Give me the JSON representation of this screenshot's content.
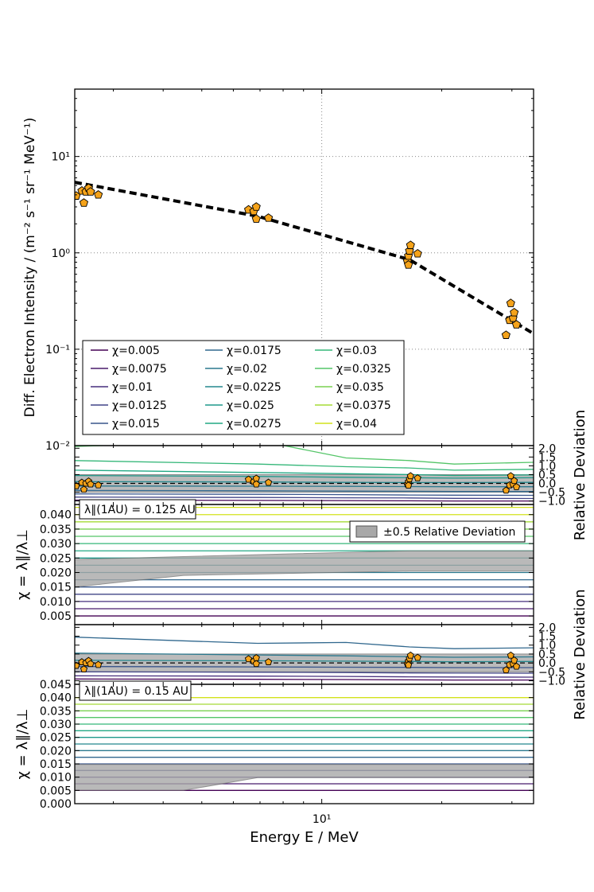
{
  "chart_data": [
    {
      "type": "scatter",
      "panel": "intensity",
      "xscale": "log",
      "yscale": "log",
      "xlim": [
        2.4,
        34
      ],
      "ylim": [
        0.01,
        50
      ],
      "ylabel": "Diff. Electron Intensity / (m⁻² s⁻¹ sr⁻¹ MeV⁻¹)",
      "ytick_labels": [
        "10⁻²",
        "10⁻¹",
        "10⁰",
        "10¹"
      ],
      "ytick_values": [
        0.01,
        0.1,
        1,
        10
      ],
      "grid": true,
      "marker_color": "#f5a31a",
      "points": [
        {
          "x": 2.42,
          "y": 3.9
        },
        {
          "x": 2.5,
          "y": 4.4
        },
        {
          "x": 2.53,
          "y": 3.3
        },
        {
          "x": 2.56,
          "y": 4.3
        },
        {
          "x": 2.6,
          "y": 4.7
        },
        {
          "x": 2.63,
          "y": 4.3
        },
        {
          "x": 2.75,
          "y": 4.0
        },
        {
          "x": 6.55,
          "y": 2.8
        },
        {
          "x": 6.75,
          "y": 2.7
        },
        {
          "x": 6.85,
          "y": 3.0
        },
        {
          "x": 6.85,
          "y": 2.25
        },
        {
          "x": 7.35,
          "y": 2.3
        },
        {
          "x": 16.4,
          "y": 0.82
        },
        {
          "x": 16.5,
          "y": 0.93
        },
        {
          "x": 16.6,
          "y": 1.05
        },
        {
          "x": 16.7,
          "y": 1.2
        },
        {
          "x": 16.5,
          "y": 0.75
        },
        {
          "x": 17.4,
          "y": 0.98
        },
        {
          "x": 29.0,
          "y": 0.14
        },
        {
          "x": 29.6,
          "y": 0.2
        },
        {
          "x": 29.8,
          "y": 0.3
        },
        {
          "x": 30.2,
          "y": 0.21
        },
        {
          "x": 30.4,
          "y": 0.24
        },
        {
          "x": 30.8,
          "y": 0.18
        }
      ],
      "fit_line": {
        "style": "dashed",
        "x": [
          2.4,
          6.9,
          16.6,
          34
        ],
        "y": [
          5.4,
          2.4,
          0.85,
          0.145
        ]
      },
      "legend": {
        "location": "lower-left",
        "entries": [
          {
            "label": "χ=0.005",
            "color": "#440154"
          },
          {
            "label": "χ=0.0075",
            "color": "#481a6c"
          },
          {
            "label": "χ=0.01",
            "color": "#472f7d"
          },
          {
            "label": "χ=0.0125",
            "color": "#414487"
          },
          {
            "label": "χ=0.015",
            "color": "#39568c"
          },
          {
            "label": "χ=0.0175",
            "color": "#31688e"
          },
          {
            "label": "χ=0.02",
            "color": "#2a788e"
          },
          {
            "label": "χ=0.0225",
            "color": "#23888e"
          },
          {
            "label": "χ=0.025",
            "color": "#1f988b"
          },
          {
            "label": "χ=0.0275",
            "color": "#22a884"
          },
          {
            "label": "χ=0.03",
            "color": "#35b779"
          },
          {
            "label": "χ=0.0325",
            "color": "#54c568"
          },
          {
            "label": "χ=0.035",
            "color": "#7ad151"
          },
          {
            "label": "χ=0.0375",
            "color": "#a5db36"
          },
          {
            "label": "χ=0.04",
            "color": "#d2e21b"
          }
        ]
      }
    },
    {
      "type": "line",
      "panel": "relative-deviation-1",
      "xscale": "log",
      "xlim": [
        2.4,
        34
      ],
      "ylim": [
        -1.2,
        2.15
      ],
      "ylabel": "Relative Deviation",
      "ytick_labels": [
        "2.0",
        "1.5",
        "1.0",
        "0.5",
        "0.0",
        "−0.5",
        "−1.0"
      ],
      "ytick_values": [
        2.0,
        1.5,
        1.0,
        0.5,
        0.0,
        -0.5,
        -1.0
      ],
      "band": [
        -0.5,
        0.5
      ],
      "x_nodes": [
        2.4,
        6.9,
        11.5,
        16.6,
        21.5,
        34
      ],
      "series": [
        {
          "color": "#54c568",
          "values": [
            2.1,
            2.45,
            1.45,
            1.3,
            1.1,
            1.2
          ]
        },
        {
          "color": "#35b779",
          "values": [
            1.3,
            1.1,
            0.95,
            0.88,
            0.75,
            0.8
          ]
        },
        {
          "color": "#22a884",
          "values": [
            0.75,
            0.62,
            0.55,
            0.5,
            0.45,
            0.48
          ]
        },
        {
          "color": "#1f988b",
          "values": [
            0.45,
            0.4,
            0.35,
            0.32,
            0.3,
            0.32
          ]
        },
        {
          "color": "#23888e",
          "values": [
            0.1,
            0.08,
            0.06,
            0.05,
            0.05,
            0.06
          ]
        },
        {
          "color": "#2a788e",
          "values": [
            -0.15,
            -0.16,
            -0.17,
            -0.18,
            -0.19,
            -0.19
          ]
        },
        {
          "color": "#31688e",
          "values": [
            -0.4,
            -0.42,
            -0.44,
            -0.45,
            -0.46,
            -0.46
          ]
        },
        {
          "color": "#39568c",
          "values": [
            -0.6,
            -0.62,
            -0.64,
            -0.66,
            -0.67,
            -0.68
          ]
        },
        {
          "color": "#414487",
          "values": [
            -0.78,
            -0.8,
            -0.82,
            -0.83,
            -0.85,
            -0.86
          ]
        },
        {
          "color": "#440154",
          "values": [
            -0.95,
            -0.97,
            -0.98,
            -0.99,
            -1.0,
            -1.0
          ]
        }
      ],
      "points": [
        {
          "x": 2.42,
          "y": -0.15
        },
        {
          "x": 2.5,
          "y": 0.05
        },
        {
          "x": 2.53,
          "y": -0.35
        },
        {
          "x": 2.56,
          "y": 0.0
        },
        {
          "x": 2.6,
          "y": 0.12
        },
        {
          "x": 2.63,
          "y": -0.05
        },
        {
          "x": 2.75,
          "y": -0.1
        },
        {
          "x": 6.55,
          "y": 0.22
        },
        {
          "x": 6.75,
          "y": 0.1
        },
        {
          "x": 6.85,
          "y": 0.28
        },
        {
          "x": 6.85,
          "y": -0.05
        },
        {
          "x": 7.35,
          "y": 0.05
        },
        {
          "x": 16.4,
          "y": -0.05
        },
        {
          "x": 16.5,
          "y": 0.1
        },
        {
          "x": 16.6,
          "y": 0.25
        },
        {
          "x": 16.7,
          "y": 0.42
        },
        {
          "x": 16.5,
          "y": -0.12
        },
        {
          "x": 17.4,
          "y": 0.3
        },
        {
          "x": 29.0,
          "y": -0.4
        },
        {
          "x": 29.6,
          "y": -0.1
        },
        {
          "x": 29.8,
          "y": 0.42
        },
        {
          "x": 30.2,
          "y": -0.05
        },
        {
          "x": 30.4,
          "y": 0.15
        },
        {
          "x": 30.8,
          "y": -0.2
        }
      ]
    },
    {
      "type": "line",
      "panel": "chi-map-1",
      "annotation": "λ∥(1AU) = 0.125 AU",
      "xscale": "log",
      "xlim": [
        2.4,
        34
      ],
      "ylim": [
        0.002,
        0.0435
      ],
      "ylabel": "χ = λ∥/λ⊥",
      "ytick_labels": [
        "0.040",
        "0.035",
        "0.030",
        "0.025",
        "0.020",
        "0.015",
        "0.010",
        "0.005"
      ],
      "ytick_values": [
        0.04,
        0.035,
        0.03,
        0.025,
        0.02,
        0.015,
        0.01,
        0.005
      ],
      "legend_label": "±0.5 Relative Deviation",
      "band": {
        "x": [
          2.4,
          4.5,
          16.6,
          34
        ],
        "lower": [
          0.015,
          0.019,
          0.0205,
          0.0205
        ],
        "upper": [
          0.0245,
          0.0255,
          0.0275,
          0.0275
        ]
      }
    },
    {
      "type": "line",
      "panel": "relative-deviation-2",
      "xscale": "log",
      "xlim": [
        2.4,
        34
      ],
      "ylim": [
        -1.2,
        2.15
      ],
      "ylabel": "Relative Deviation",
      "ytick_labels": [
        "2.0",
        "1.5",
        "1.0",
        "0.5",
        "0.0",
        "−0.5",
        "−1.0"
      ],
      "ytick_values": [
        2.0,
        1.5,
        1.0,
        0.5,
        0.0,
        -0.5,
        -1.0
      ],
      "band": [
        -0.5,
        0.5
      ],
      "x_nodes": [
        2.4,
        6.9,
        11.5,
        16.6,
        21.5,
        34
      ],
      "series": [
        {
          "color": "#31688e",
          "values": [
            1.45,
            1.1,
            1.15,
            0.9,
            0.8,
            0.85
          ]
        },
        {
          "color": "#2a788e",
          "values": [
            0.55,
            0.45,
            0.4,
            0.35,
            0.32,
            0.34
          ]
        },
        {
          "color": "#23888e",
          "values": [
            0.15,
            0.12,
            0.1,
            0.08,
            0.07,
            0.08
          ]
        },
        {
          "color": "#39568c",
          "values": [
            -0.2,
            -0.22,
            -0.24,
            -0.25,
            -0.26,
            -0.26
          ]
        },
        {
          "color": "#414487",
          "values": [
            -0.5,
            -0.52,
            -0.54,
            -0.56,
            -0.57,
            -0.58
          ]
        },
        {
          "color": "#472f7d",
          "values": [
            -0.72,
            -0.74,
            -0.76,
            -0.78,
            -0.79,
            -0.8
          ]
        },
        {
          "color": "#440154",
          "values": [
            -0.9,
            -0.92,
            -0.93,
            -0.95,
            -0.96,
            -0.96
          ]
        }
      ],
      "points": [
        {
          "x": 2.42,
          "y": -0.15
        },
        {
          "x": 2.5,
          "y": 0.05
        },
        {
          "x": 2.53,
          "y": -0.35
        },
        {
          "x": 2.56,
          "y": 0.0
        },
        {
          "x": 2.6,
          "y": 0.12
        },
        {
          "x": 2.63,
          "y": -0.05
        },
        {
          "x": 2.75,
          "y": -0.1
        },
        {
          "x": 6.55,
          "y": 0.22
        },
        {
          "x": 6.75,
          "y": 0.1
        },
        {
          "x": 6.85,
          "y": 0.28
        },
        {
          "x": 6.85,
          "y": -0.05
        },
        {
          "x": 7.35,
          "y": 0.05
        },
        {
          "x": 16.4,
          "y": -0.05
        },
        {
          "x": 16.5,
          "y": 0.1
        },
        {
          "x": 16.6,
          "y": 0.25
        },
        {
          "x": 16.7,
          "y": 0.42
        },
        {
          "x": 16.5,
          "y": -0.12
        },
        {
          "x": 17.4,
          "y": 0.3
        },
        {
          "x": 29.0,
          "y": -0.4
        },
        {
          "x": 29.6,
          "y": -0.1
        },
        {
          "x": 29.8,
          "y": 0.42
        },
        {
          "x": 30.2,
          "y": -0.05
        },
        {
          "x": 30.4,
          "y": 0.15
        },
        {
          "x": 30.8,
          "y": -0.2
        }
      ]
    },
    {
      "type": "line",
      "panel": "chi-map-2",
      "annotation": "λ∥(1AU) = 0.15 AU",
      "xscale": "log",
      "xlim": [
        2.4,
        34
      ],
      "ylim": [
        0.0,
        0.045
      ],
      "ylabel": "χ = λ∥/λ⊥",
      "xlabel": "Energy E / MeV",
      "xtick_label": "10¹",
      "xtick_value": 10,
      "ytick_labels": [
        "0.045",
        "0.040",
        "0.035",
        "0.030",
        "0.025",
        "0.020",
        "0.015",
        "0.010",
        "0.005",
        "0.000"
      ],
      "ytick_values": [
        0.045,
        0.04,
        0.035,
        0.03,
        0.025,
        0.02,
        0.015,
        0.01,
        0.005,
        0.0
      ],
      "band": {
        "x": [
          2.4,
          4.5,
          6.9,
          34
        ],
        "lower": [
          0.005,
          0.005,
          0.0098,
          0.0098
        ],
        "upper": [
          0.0148,
          0.0148,
          0.0148,
          0.0148
        ]
      }
    }
  ]
}
